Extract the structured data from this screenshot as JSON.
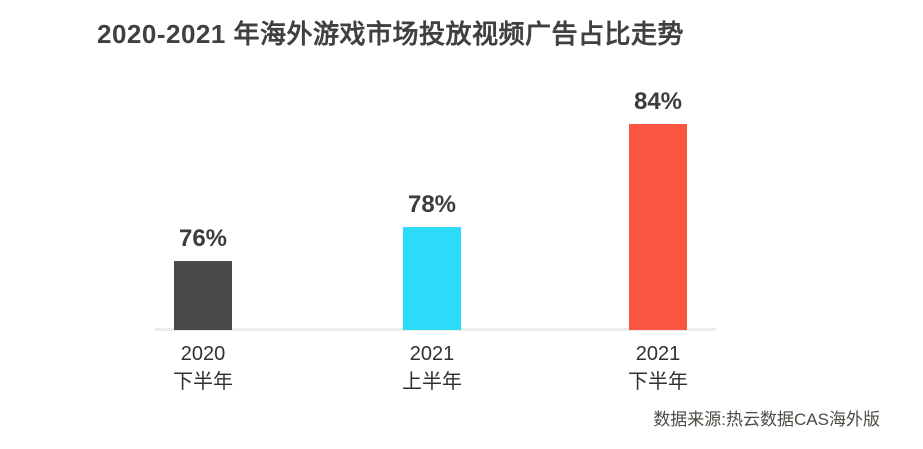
{
  "chart": {
    "title": "2020-2021 年海外游戏市场投放视频广告占比走势",
    "source": "数据来源:热云数据CAS海外版"
  },
  "chart_data": {
    "type": "bar",
    "title": "2020-2021 年海外游戏市场投放视频广告占比走势",
    "categories": [
      "2020 下半年",
      "2021 上半年",
      "2021 下半年"
    ],
    "category_lines": [
      [
        "2020",
        "下半年"
      ],
      [
        "2021",
        "上半年"
      ],
      [
        "2021",
        "下半年"
      ]
    ],
    "values": [
      76,
      78,
      84
    ],
    "value_labels": [
      "76%",
      "78%",
      "84%"
    ],
    "unit": "%",
    "ylim": [
      72,
      86
    ],
    "grid": false,
    "legend": false,
    "bar_colors": [
      "#4a4a4a",
      "#2edcfa",
      "#fb5440"
    ],
    "xlabel": "",
    "ylabel": "",
    "source": "数据来源:热云数据CAS海外版"
  }
}
